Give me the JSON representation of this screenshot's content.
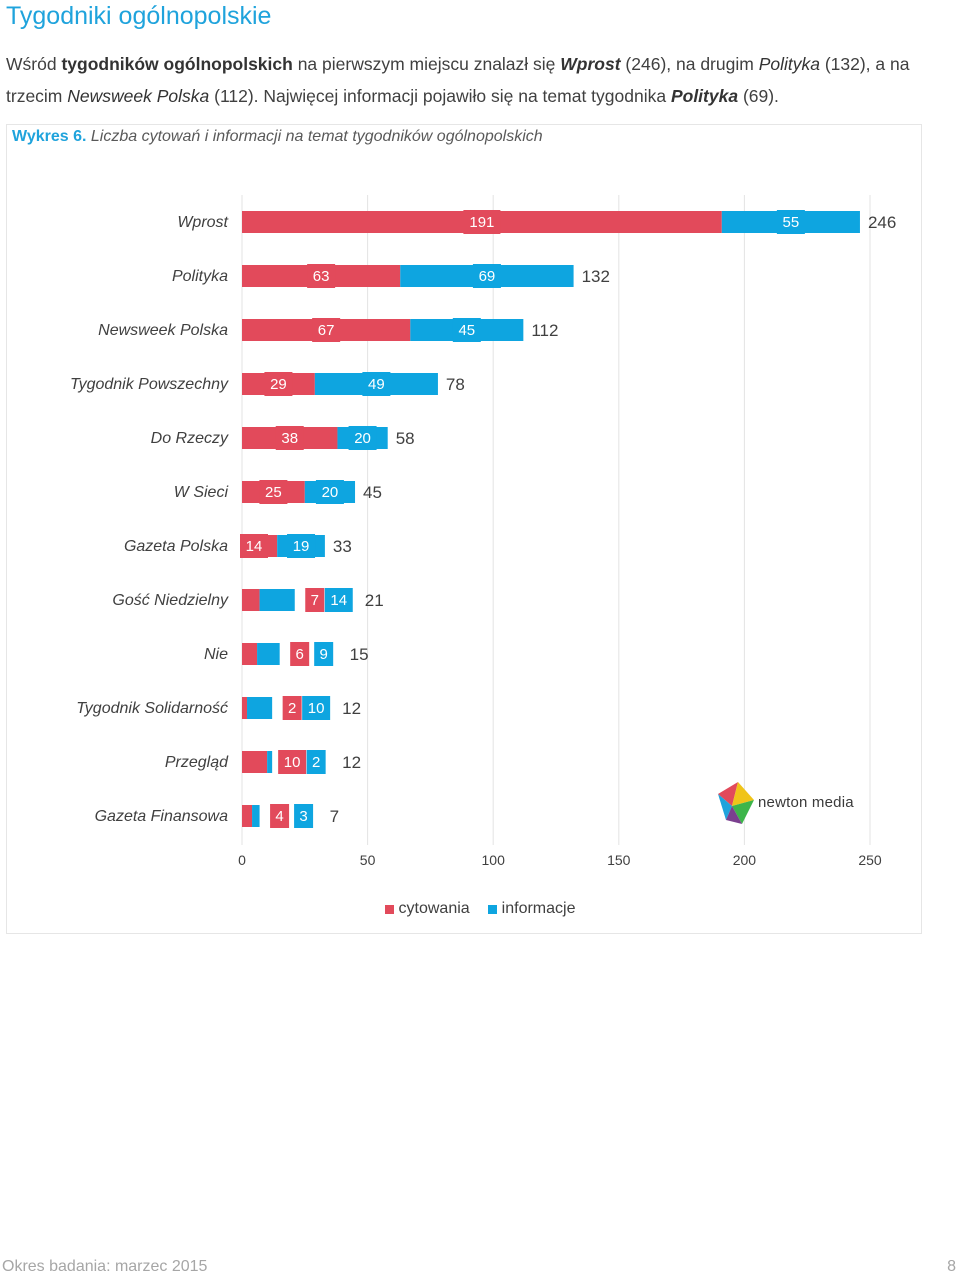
{
  "page": {
    "heading": "Tygodniki ogólnopolskie",
    "intro": {
      "p1": "Wśród ",
      "p2": "tygodników ogólnopolskich",
      "p3": " na pierwszym miejscu znalazł się ",
      "p4": "Wprost",
      "p5": " (246), na drugim ",
      "p6": "Polityka",
      "p7": " (132), a na trzecim ",
      "p8": "Newsweek Polska",
      "p9": " (112). Najwięcej informacji pojawiło się na temat tygodnika ",
      "p10": "Polityka",
      "p11": " (69)."
    },
    "caption_lead": "Wykres 6.",
    "caption_rest": " Liczba cytowań i informacji na temat tygodników ogólnopolskich",
    "logo_text": "newton media",
    "footer_left": "Okres badania: marzec 2015",
    "footer_right": "8"
  },
  "chart_data": {
    "type": "bar",
    "orientation": "horizontal",
    "stacked": true,
    "categories": [
      "Wprost",
      "Polityka",
      "Newsweek Polska",
      "Tygodnik Powszechny",
      "Do Rzeczy",
      "W Sieci",
      "Gazeta Polska",
      "Gość Niedzielny",
      "Nie",
      "Tygodnik Solidarność",
      "Przegląd",
      "Gazeta Finansowa"
    ],
    "series": [
      {
        "name": "cytowania",
        "color": "#e24a5b",
        "values": [
          191,
          63,
          67,
          29,
          38,
          25,
          14,
          7,
          6,
          2,
          10,
          4
        ]
      },
      {
        "name": "informacje",
        "color": "#0ea5e0",
        "values": [
          55,
          69,
          45,
          49,
          20,
          20,
          19,
          14,
          9,
          10,
          2,
          3
        ]
      }
    ],
    "totals": [
      246,
      132,
      112,
      78,
      58,
      45,
      33,
      21,
      15,
      12,
      12,
      7
    ],
    "xlim": [
      0,
      250
    ],
    "xticks": [
      0,
      50,
      100,
      150,
      200,
      250
    ],
    "grid": true,
    "legend_position": "bottom"
  }
}
